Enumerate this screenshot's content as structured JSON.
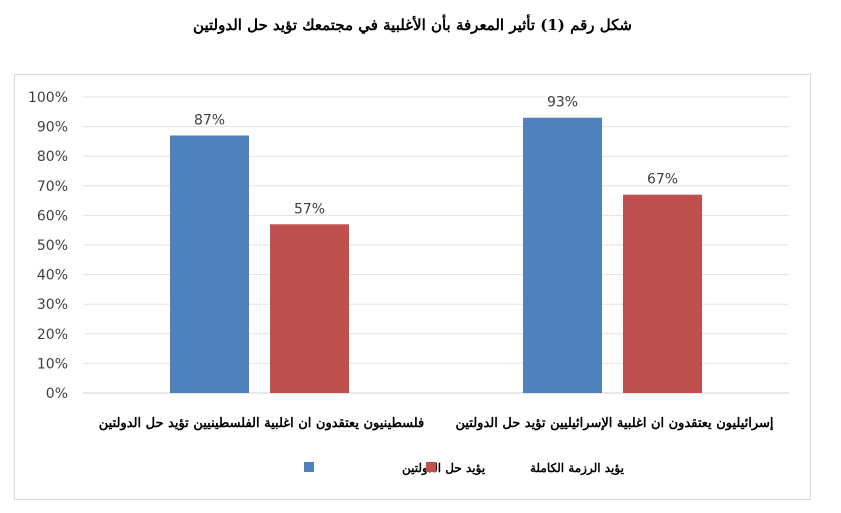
{
  "title": "شكل رقم (1) تأثير المعرفة بأن الأغلبية في مجتمعك تؤيد حل الدولتين",
  "chart_data": {
    "type": "bar",
    "categories": [
      "فلسطينيون يعتقدون ان اغلبية الفلسطينيين تؤيد حل الدولتين",
      "إسرائيليون يعتقدون ان اغلبية الإسرائيليين تؤيد حل الدولتين"
    ],
    "series": [
      {
        "name": "يؤيد حل الدولتين",
        "values": [
          87,
          93
        ],
        "color": "#4F81BD"
      },
      {
        "name": "يؤيد الرزمة الكاملة",
        "values": [
          57,
          67
        ],
        "color": "#C0504D"
      }
    ],
    "value_labels": [
      [
        "87%",
        "93%"
      ],
      [
        "57%",
        "67%"
      ]
    ],
    "ylim": [
      0,
      100
    ],
    "yticks": [
      "0%",
      "10%",
      "20%",
      "30%",
      "40%",
      "50%",
      "60%",
      "70%",
      "80%",
      "90%",
      "100%"
    ],
    "grid": true,
    "legend": "bottom"
  }
}
